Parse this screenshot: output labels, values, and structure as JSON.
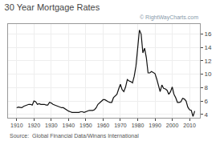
{
  "chart_data": {
    "type": "line",
    "title": "30 Year Mortgage Rates",
    "annotations": [
      "Source:  Global Financial Data/Winans International",
      "© RightWayCharts.com"
    ],
    "x": [
      1910,
      1911,
      1912,
      1913,
      1914,
      1915,
      1916,
      1917,
      1918,
      1919,
      1920,
      1921,
      1922,
      1923,
      1924,
      1925,
      1926,
      1927,
      1928,
      1929,
      1930,
      1931,
      1932,
      1933,
      1934,
      1935,
      1936,
      1937,
      1938,
      1939,
      1940,
      1941,
      1942,
      1943,
      1944,
      1945,
      1946,
      1947,
      1948,
      1949,
      1950,
      1951,
      1952,
      1953,
      1954,
      1955,
      1956,
      1957,
      1958,
      1959,
      1960,
      1961,
      1962,
      1963,
      1964,
      1965,
      1966,
      1967,
      1968,
      1969,
      1970,
      1971,
      1972,
      1973,
      1974,
      1975,
      1976,
      1977,
      1978,
      1979,
      1980,
      1981,
      1982,
      1983,
      1984,
      1985,
      1986,
      1987,
      1988,
      1989,
      1990,
      1991,
      1992,
      1993,
      1994,
      1995,
      1996,
      1997,
      1998,
      1999,
      2000,
      2001,
      2002,
      2003,
      2004,
      2005,
      2006,
      2007,
      2008,
      2009,
      2010,
      2011,
      2012,
      2013
    ],
    "values": [
      5.0,
      5.1,
      5.05,
      5.0,
      5.2,
      5.3,
      5.4,
      5.5,
      5.5,
      5.4,
      6.0,
      5.9,
      5.5,
      5.6,
      5.5,
      5.5,
      5.5,
      5.4,
      5.4,
      5.8,
      5.7,
      5.5,
      5.4,
      5.3,
      5.2,
      5.1,
      5.0,
      5.0,
      4.8,
      4.7,
      4.5,
      4.4,
      4.3,
      4.3,
      4.3,
      4.3,
      4.3,
      4.4,
      4.4,
      4.3,
      4.4,
      4.5,
      4.6,
      4.6,
      4.6,
      4.7,
      5.0,
      5.5,
      5.7,
      5.9,
      6.2,
      6.2,
      6.0,
      5.9,
      5.8,
      5.8,
      6.5,
      6.7,
      7.0,
      7.8,
      8.5,
      7.7,
      7.4,
      8.1,
      9.2,
      9.0,
      8.9,
      8.7,
      9.7,
      11.2,
      13.7,
      16.6,
      16.0,
      13.2,
      13.9,
      12.5,
      10.2,
      10.2,
      10.4,
      10.2,
      10.1,
      9.3,
      8.4,
      7.4,
      8.4,
      7.9,
      7.8,
      7.6,
      7.0,
      7.4,
      8.1,
      7.0,
      6.5,
      5.8,
      5.8,
      5.9,
      6.4,
      6.3,
      6.0,
      5.1,
      4.7,
      4.6,
      3.7,
      4.5
    ],
    "color": "#111111",
    "xlim": [
      1905,
      2016
    ],
    "ylim": [
      3.5,
      17.5
    ],
    "xticks": [
      1910,
      1920,
      1930,
      1940,
      1950,
      1960,
      1970,
      1980,
      1990,
      2000,
      2010
    ],
    "yticks": [
      4,
      6,
      8,
      10,
      12,
      14,
      16
    ],
    "grid": true
  }
}
